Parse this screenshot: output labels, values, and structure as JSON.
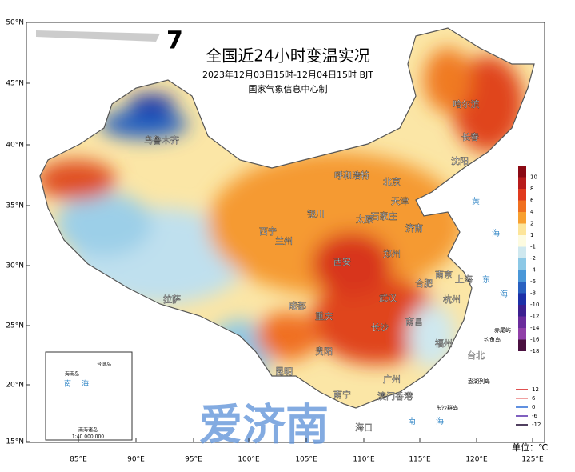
{
  "title": "全国近24小时变温实况",
  "subtitle": "2023年12月03日15时-12月04日15时 BJT",
  "source": "国家气象信息中心制",
  "lat_labels": [
    "50°N",
    "45°N",
    "40°N",
    "35°N",
    "30°N",
    "25°N",
    "20°N",
    "15°N"
  ],
  "lon_labels": [
    "85°E",
    "90°E",
    "95°E",
    "100°E",
    "105°E",
    "110°E",
    "115°E",
    "120°E",
    "125°E"
  ],
  "cities": [
    "哈尔滨",
    "长春",
    "沈阳",
    "乌鲁木齐",
    "呼和浩特",
    "北京",
    "天津",
    "石家庄",
    "太原",
    "济南",
    "银川",
    "西宁",
    "兰州",
    "郑州",
    "西安",
    "南京",
    "合肥",
    "上海",
    "杭州",
    "武汉",
    "成都",
    "重庆",
    "长沙",
    "南昌",
    "福州",
    "贵阳",
    "拉萨",
    "昆明",
    "南宁",
    "广州",
    "澳门",
    "香港",
    "台北",
    "海口"
  ],
  "seas": [
    "黄",
    "海",
    "东",
    "海",
    "南",
    "海",
    "南",
    "海"
  ],
  "islands": [
    "赤尾屿",
    "钓鱼岛",
    "澎湖列岛",
    "东沙群岛"
  ],
  "color_legend": [
    {
      "label": "10",
      "color": "#8b0a14"
    },
    {
      "label": "8",
      "color": "#b81c1c"
    },
    {
      "label": "6",
      "color": "#e03a1e"
    },
    {
      "label": "4",
      "color": "#f07020"
    },
    {
      "label": "2",
      "color": "#f8a030"
    },
    {
      "label": "1",
      "color": "#fde59a"
    },
    {
      "label": "-1",
      "color": "#fdfbe0"
    },
    {
      "label": "-2",
      "color": "#cfe8ef"
    },
    {
      "label": "-4",
      "color": "#8cc8e6"
    },
    {
      "label": "-6",
      "color": "#4a97d8"
    },
    {
      "label": "-8",
      "color": "#2860c0"
    },
    {
      "label": "-10",
      "color": "#1c30a8"
    },
    {
      "label": "-12",
      "color": "#3c2090"
    },
    {
      "label": "-14",
      "color": "#6a2c9c"
    },
    {
      "label": "-16",
      "color": "#9040a8"
    },
    {
      "label": "-18",
      "color": "#4a1040"
    }
  ],
  "contour_legend": [
    {
      "label": "12",
      "color": "#e05050"
    },
    {
      "label": "6",
      "color": "#f0a0a0"
    },
    {
      "label": "0",
      "color": "#6090e0"
    },
    {
      "label": "-6",
      "color": "#8060c0"
    },
    {
      "label": "-12",
      "color": "#504060"
    }
  ],
  "unit": "单位：℃",
  "inset": {
    "labels": [
      "台湾岛",
      "海南岛",
      "南 海",
      "南海诸岛",
      "1:40 000 000"
    ]
  },
  "watermark": "爱济南"
}
